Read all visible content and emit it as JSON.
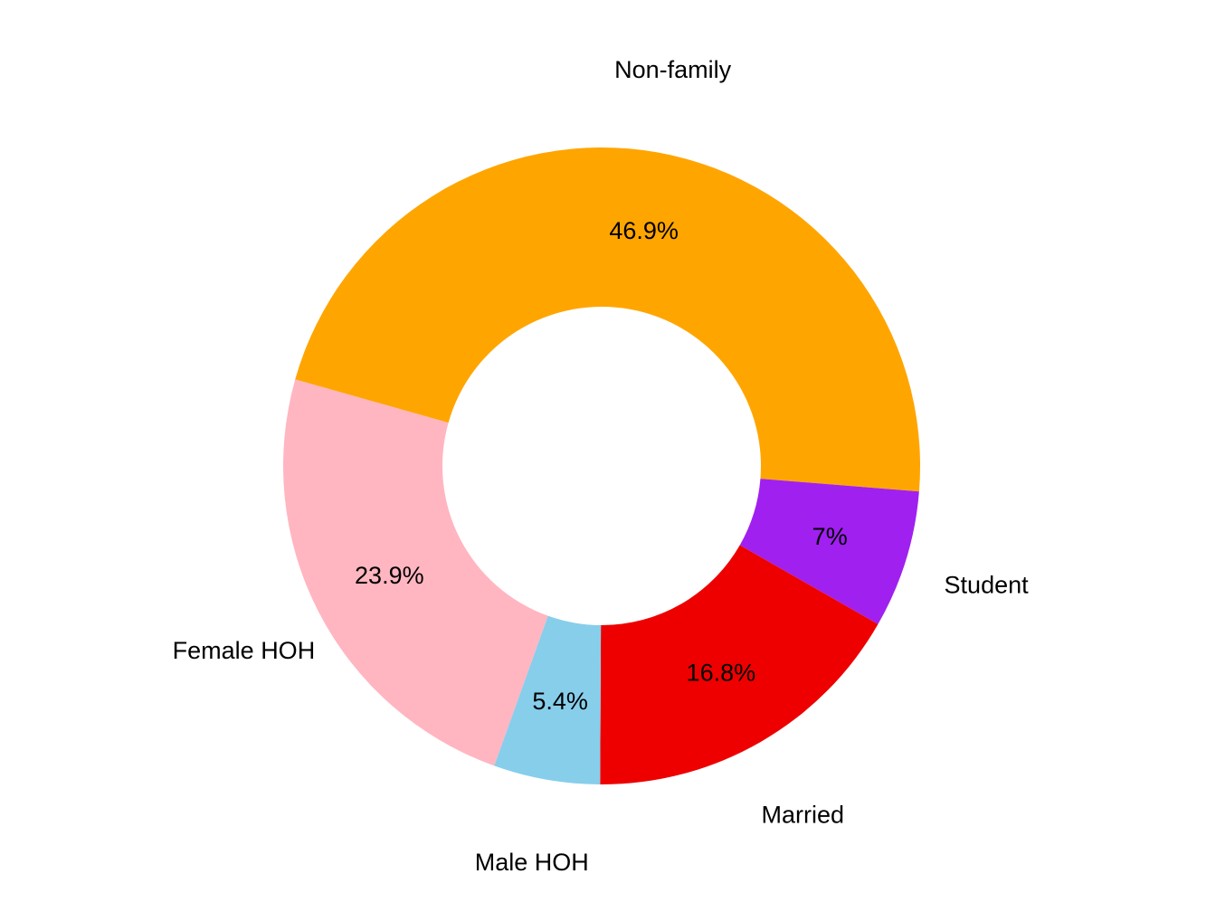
{
  "chart_data": {
    "type": "pie",
    "variant": "donut",
    "slices": [
      {
        "label": "Non-family",
        "value": 46.9,
        "value_label": "46.9%",
        "color": "#FFA500"
      },
      {
        "label": "Student",
        "value": 7.0,
        "value_label": "7%",
        "color": "#A020F0"
      },
      {
        "label": "Married",
        "value": 16.8,
        "value_label": "16.8%",
        "color": "#EE0000"
      },
      {
        "label": "Male HOH",
        "value": 5.4,
        "value_label": "5.4%",
        "color": "#87CEEB"
      },
      {
        "label": "Female HOH",
        "value": 23.9,
        "value_label": "23.9%",
        "color": "#FFB6C1"
      }
    ],
    "direction": "clockwise",
    "legend": "none",
    "background": "#FFFFFF"
  }
}
